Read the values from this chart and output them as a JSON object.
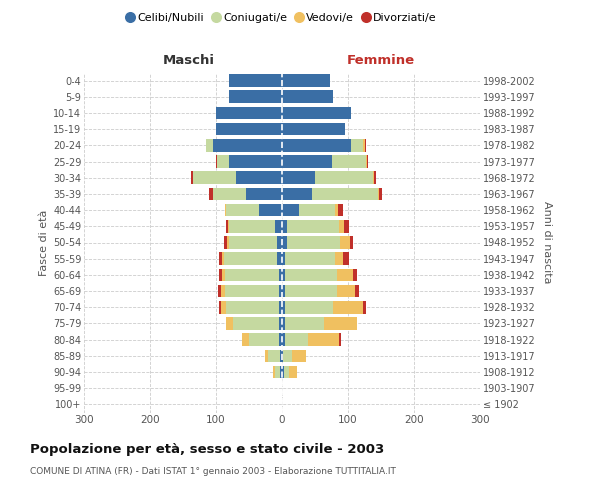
{
  "age_groups": [
    "100+",
    "95-99",
    "90-94",
    "85-89",
    "80-84",
    "75-79",
    "70-74",
    "65-69",
    "60-64",
    "55-59",
    "50-54",
    "45-49",
    "40-44",
    "35-39",
    "30-34",
    "25-29",
    "20-24",
    "15-19",
    "10-14",
    "5-9",
    "0-4"
  ],
  "birth_years": [
    "≤ 1902",
    "1903-1907",
    "1908-1912",
    "1913-1917",
    "1918-1922",
    "1923-1927",
    "1928-1932",
    "1933-1937",
    "1938-1942",
    "1943-1947",
    "1948-1952",
    "1953-1957",
    "1958-1962",
    "1963-1967",
    "1968-1972",
    "1973-1977",
    "1978-1982",
    "1983-1987",
    "1988-1992",
    "1993-1997",
    "1998-2002"
  ],
  "maschi_celibe": [
    0,
    0,
    3,
    3,
    5,
    5,
    5,
    5,
    5,
    8,
    8,
    10,
    35,
    55,
    70,
    80,
    105,
    100,
    100,
    80,
    80
  ],
  "maschi_coniugato": [
    0,
    0,
    8,
    18,
    45,
    70,
    80,
    82,
    82,
    80,
    72,
    70,
    50,
    50,
    65,
    18,
    10,
    0,
    0,
    0,
    0
  ],
  "maschi_vedovo": [
    0,
    0,
    3,
    5,
    10,
    10,
    8,
    5,
    4,
    3,
    3,
    2,
    1,
    0,
    0,
    0,
    0,
    0,
    0,
    0,
    0
  ],
  "maschi_divorziato": [
    0,
    0,
    0,
    0,
    0,
    0,
    3,
    5,
    5,
    5,
    5,
    3,
    1,
    5,
    3,
    2,
    0,
    0,
    0,
    0,
    0
  ],
  "femmine_celibe": [
    0,
    0,
    3,
    2,
    4,
    4,
    5,
    5,
    5,
    5,
    8,
    8,
    25,
    45,
    50,
    75,
    105,
    95,
    105,
    78,
    72
  ],
  "femmine_coniugata": [
    0,
    0,
    7,
    13,
    35,
    60,
    72,
    78,
    78,
    75,
    80,
    78,
    55,
    100,
    88,
    52,
    18,
    0,
    0,
    0,
    0
  ],
  "femmine_vedova": [
    0,
    0,
    12,
    22,
    48,
    50,
    45,
    28,
    25,
    12,
    15,
    8,
    5,
    2,
    2,
    2,
    2,
    0,
    0,
    0,
    0
  ],
  "femmine_divorziata": [
    0,
    0,
    0,
    0,
    3,
    0,
    5,
    5,
    5,
    10,
    5,
    8,
    8,
    5,
    2,
    2,
    2,
    0,
    0,
    0,
    0
  ],
  "color_celibe": "#3a6ea5",
  "color_coniugato": "#c5d9a0",
  "color_vedovo": "#f0c060",
  "color_divorziato": "#c0302a",
  "title": "Popolazione per età, sesso e stato civile - 2003",
  "subtitle": "COMUNE DI ATINA (FR) - Dati ISTAT 1° gennaio 2003 - Elaborazione TUTTITALIA.IT",
  "label_maschi": "Maschi",
  "label_femmine": "Femmine",
  "ylabel_left": "Fasce di età",
  "ylabel_right": "Anni di nascita",
  "xlim": 300,
  "legend_labels": [
    "Celibi/Nubili",
    "Coniugati/e",
    "Vedovi/e",
    "Divorziati/e"
  ],
  "bg_color": "#ffffff",
  "grid_color": "#cccccc",
  "bar_height": 0.78
}
